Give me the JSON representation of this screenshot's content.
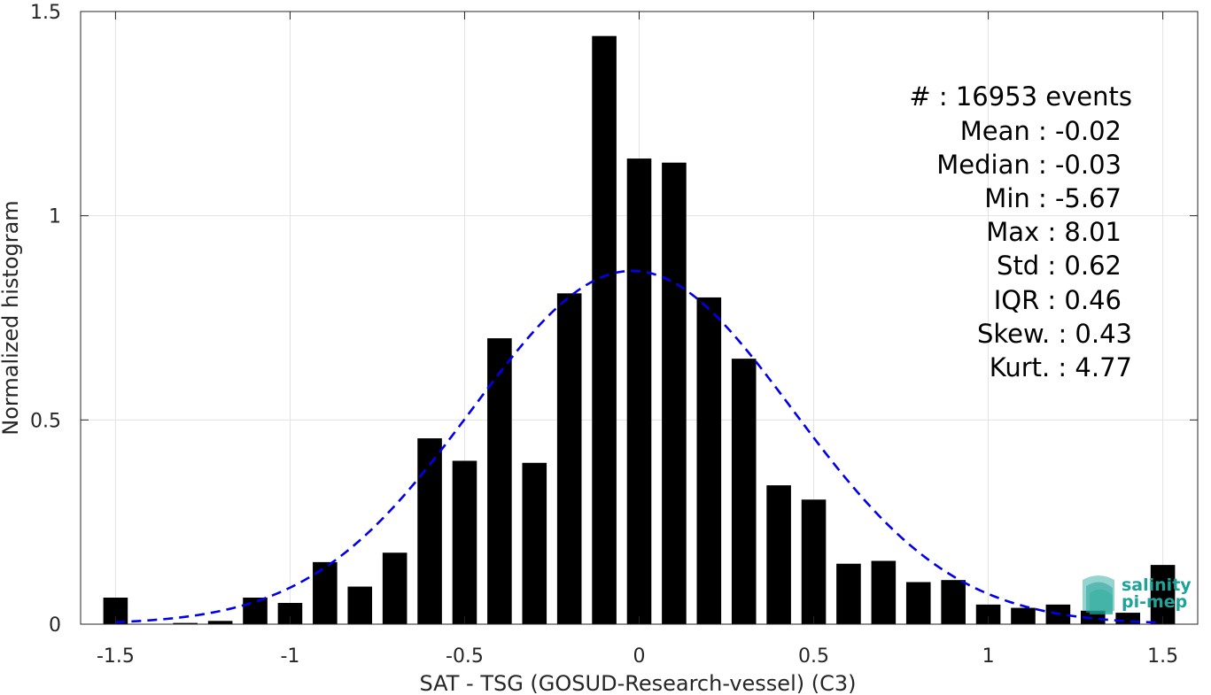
{
  "chart_data": {
    "type": "bar",
    "title": "",
    "xlabel": "SAT - TSG (GOSUD-Research-vessel) (C3)",
    "ylabel": "Normalized histogram",
    "xlim": [
      -1.6,
      1.6
    ],
    "ylim": [
      0,
      1.5
    ],
    "grid": true,
    "x_ticks": [
      -1.5,
      -1,
      -0.5,
      0,
      0.5,
      1,
      1.5
    ],
    "x_tick_labels": [
      "-1.5",
      "-1",
      "-0.5",
      "0",
      "0.5",
      "1",
      "1.5"
    ],
    "y_ticks": [
      0,
      0.5,
      1,
      1.5
    ],
    "y_tick_labels": [
      "0",
      "0.5",
      "1",
      "1.5"
    ],
    "bar_color": "#000000",
    "bins": [
      -1.5,
      -1.4,
      -1.3,
      -1.2,
      -1.1,
      -1.0,
      -0.9,
      -0.8,
      -0.7,
      -0.6,
      -0.5,
      -0.4,
      -0.3,
      -0.2,
      -0.1,
      0.0,
      0.1,
      0.2,
      0.3,
      0.4,
      0.5,
      0.6,
      0.7,
      0.8,
      0.9,
      1.0,
      1.1,
      1.2,
      1.3,
      1.4,
      1.5
    ],
    "values": [
      0.065,
      0.001,
      0.003,
      0.008,
      0.065,
      0.052,
      0.152,
      0.092,
      0.175,
      0.455,
      0.4,
      0.7,
      0.395,
      0.81,
      1.44,
      1.14,
      1.13,
      0.8,
      0.65,
      0.34,
      0.305,
      0.148,
      0.155,
      0.103,
      0.108,
      0.048,
      0.04,
      0.048,
      0.033,
      0.028,
      0.145
    ],
    "fit": {
      "type": "gaussian",
      "mean": -0.02,
      "std": 0.46,
      "peak": 0.865,
      "color": "#0000ee",
      "style": "dashed",
      "x_range": [
        -1.5,
        1.5
      ]
    },
    "annotations": [
      "#  : 16953 events",
      "Mean : -0.02",
      "Median : -0.03",
      "Min : -5.67",
      "Max : 8.01",
      "Std : 0.62",
      "IQR : 0.46",
      "Skew. : 0.43",
      "Kurt. : 4.77"
    ]
  },
  "logo": {
    "line1": "salinity",
    "line2": "pi-mep",
    "color": "#1fa398"
  }
}
